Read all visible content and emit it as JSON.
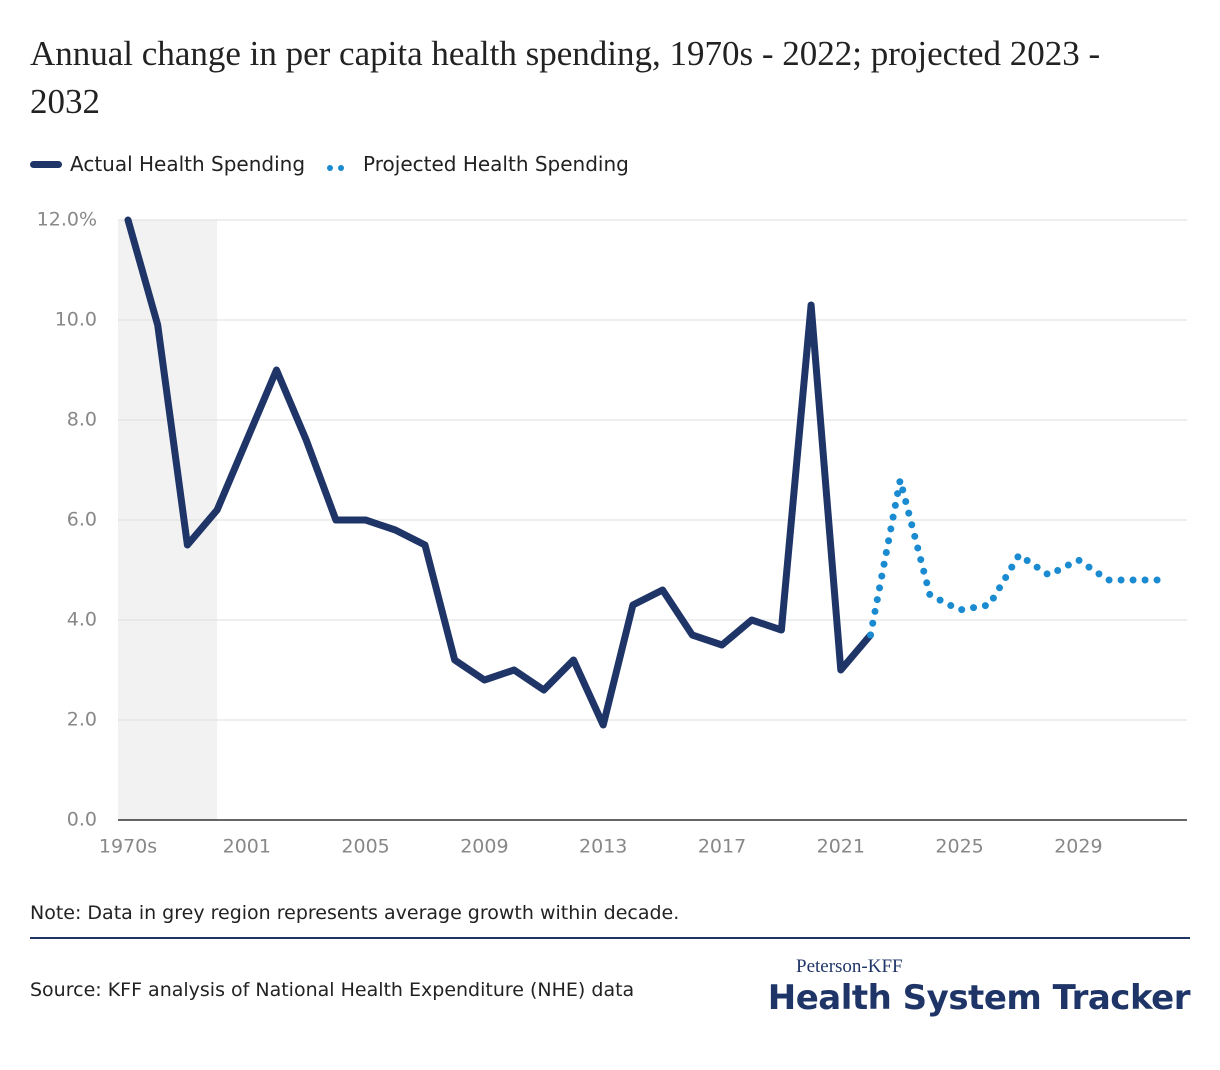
{
  "title": "Annual change in per capita health spending, 1970s - 2022; projected 2023 - 2032",
  "chart_data": {
    "type": "line",
    "categories": [
      "1970s",
      null,
      null,
      null,
      "2001",
      null,
      null,
      null,
      "2005",
      null,
      null,
      null,
      "2009",
      null,
      null,
      null,
      "2013",
      null,
      null,
      null,
      "2017",
      null,
      null,
      null,
      "2021",
      null,
      null,
      null,
      "2025",
      null,
      null,
      null,
      "2029",
      null,
      null,
      null
    ],
    "series": [
      {
        "name": "Actual Health Spending",
        "color": "#1f3568",
        "style": "solid",
        "values": [
          12.0,
          9.9,
          5.5,
          6.2,
          7.6,
          9.0,
          7.6,
          6.0,
          6.0,
          5.8,
          5.5,
          3.2,
          2.8,
          3.0,
          2.6,
          3.2,
          1.9,
          4.3,
          4.6,
          3.7,
          3.5,
          4.0,
          3.8,
          10.3,
          3.0,
          3.7,
          null,
          null,
          null,
          null,
          null,
          null,
          null,
          null,
          null,
          null
        ]
      },
      {
        "name": "Projected Health Spending",
        "color": "#1a8bd0",
        "style": "dotted",
        "values": [
          null,
          null,
          null,
          null,
          null,
          null,
          null,
          null,
          null,
          null,
          null,
          null,
          null,
          null,
          null,
          null,
          null,
          null,
          null,
          null,
          null,
          null,
          null,
          null,
          null,
          3.7,
          6.8,
          4.5,
          4.2,
          4.3,
          5.3,
          4.9,
          5.2,
          4.8,
          4.8,
          4.8
        ]
      }
    ],
    "ylim": [
      0,
      12
    ],
    "yticks": [
      {
        "value": 0,
        "label": "0.0"
      },
      {
        "value": 2,
        "label": "2.0"
      },
      {
        "value": 4,
        "label": "4.0"
      },
      {
        "value": 6,
        "label": "6.0"
      },
      {
        "value": 8,
        "label": "8.0"
      },
      {
        "value": 10,
        "label": "10.0"
      },
      {
        "value": 12,
        "label": "12.0%"
      }
    ],
    "grid": true
  },
  "note": "Note: Data in grey region represents average growth within decade.",
  "source": "Source: KFF analysis of National Health Expenditure (NHE) data",
  "brand": {
    "top": "Peterson-KFF",
    "main": "Health System Tracker"
  }
}
